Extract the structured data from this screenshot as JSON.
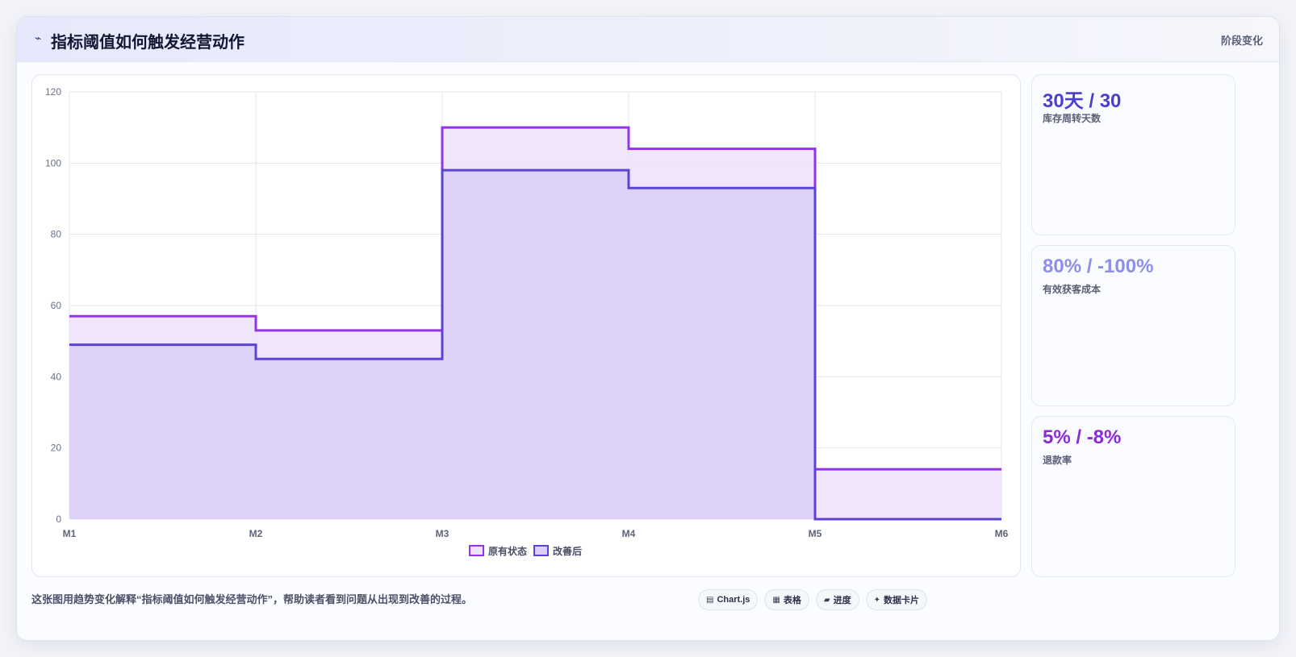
{
  "header": {
    "icon": "wave-icon",
    "title": "指标阈值如何触发经营动作",
    "tag": "阶段变化"
  },
  "kpis": [
    {
      "value": "30天 / 30",
      "label": "库存周转天数",
      "color": "#4b3fce"
    },
    {
      "value": "80% / -100%",
      "label": "有效获客成本",
      "color": "#8b8fe6"
    },
    {
      "value": "5% / -8%",
      "label": "退款率",
      "color": "#8a2bd6"
    }
  ],
  "footer": {
    "caption": "这张图用趋势变化解释“指标阈值如何触发经营动作”，帮助读者看到问题从出现到改善的过程。"
  },
  "chips": [
    {
      "icon": "chart-icon",
      "glyph": "▤",
      "label": "Chart.js"
    },
    {
      "icon": "table-icon",
      "glyph": "▦",
      "label": "表格"
    },
    {
      "icon": "progress-icon",
      "glyph": "▰",
      "label": "进度"
    },
    {
      "icon": "card-icon",
      "glyph": "✦",
      "label": "数据卡片"
    }
  ],
  "chart_data": {
    "type": "area",
    "stepped": true,
    "x": [
      "M1",
      "M2",
      "M3",
      "M4",
      "M5",
      "M6"
    ],
    "ylim": [
      0,
      120
    ],
    "yticks": [
      0,
      20,
      40,
      60,
      80,
      100,
      120
    ],
    "grid": true,
    "legend": "bottom-center",
    "series": [
      {
        "name": "原有状态",
        "values": [
          57,
          53,
          110,
          104,
          14,
          14
        ],
        "color": "#9333ea",
        "fill": "#eee1fa"
      },
      {
        "name": "改善后",
        "values": [
          49,
          45,
          98,
          93,
          0,
          0
        ],
        "color": "#5b43d6",
        "fill": "#dccff8"
      }
    ]
  }
}
